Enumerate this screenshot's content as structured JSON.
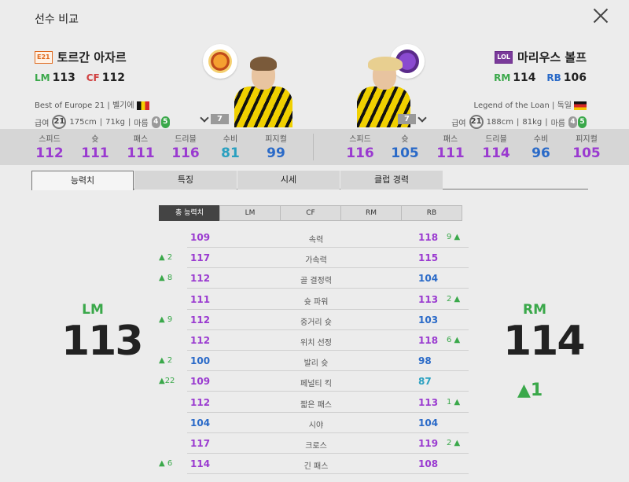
{
  "header": {
    "title": "선수 비교"
  },
  "left_player": {
    "season": "E21",
    "name": "토르간 아자르",
    "positions": [
      {
        "pos": "LM",
        "val": "113"
      },
      {
        "pos": "CF",
        "val": "112"
      }
    ],
    "season_full": "Best of Europe 21",
    "nation": "벨기에",
    "salary_label": "급여",
    "salary": "21",
    "height": "175cm",
    "weight": "71kg",
    "body": "마름",
    "foot_left": "4",
    "foot_right": "5",
    "level": "7"
  },
  "right_player": {
    "season": "LOL",
    "name": "마리우스 볼프",
    "positions": [
      {
        "pos": "RM",
        "val": "114"
      },
      {
        "pos": "RB",
        "val": "106"
      }
    ],
    "season_full": "Legend of the Loan",
    "nation": "독일",
    "salary_label": "급여",
    "salary": "21",
    "height": "188cm",
    "weight": "81kg",
    "body": "마름",
    "foot_left": "4",
    "foot_right": "5",
    "level": "7"
  },
  "stats_labels": [
    "스피드",
    "슛",
    "패스",
    "드리블",
    "수비",
    "피지컬"
  ],
  "left_stats": [
    "112",
    "111",
    "111",
    "116",
    "81",
    "99"
  ],
  "right_stats": [
    "116",
    "105",
    "111",
    "114",
    "96",
    "105"
  ],
  "tabs": [
    "능력치",
    "특징",
    "시세",
    "클럽 경력"
  ],
  "sub_tabs": [
    "총 능력치",
    "LM",
    "CF",
    "RM",
    "RB"
  ],
  "attributes": [
    {
      "name": "속력",
      "left": "109",
      "right": "118",
      "dl": "",
      "dr": "9 ▲"
    },
    {
      "name": "가속력",
      "left": "117",
      "right": "115",
      "dl": "▲ 2",
      "dr": ""
    },
    {
      "name": "골 결정력",
      "left": "112",
      "right": "104",
      "dl": "▲ 8",
      "dr": ""
    },
    {
      "name": "슛 파워",
      "left": "111",
      "right": "113",
      "dl": "",
      "dr": "2 ▲"
    },
    {
      "name": "중거리 슛",
      "left": "112",
      "right": "103",
      "dl": "▲ 9",
      "dr": ""
    },
    {
      "name": "위치 선정",
      "left": "112",
      "right": "118",
      "dl": "",
      "dr": "6 ▲"
    },
    {
      "name": "발리 슛",
      "left": "100",
      "right": "98",
      "dl": "▲ 2",
      "dr": ""
    },
    {
      "name": "페널티 킥",
      "left": "109",
      "right": "87",
      "dl": "▲22",
      "dr": ""
    },
    {
      "name": "짧은 패스",
      "left": "112",
      "right": "113",
      "dl": "",
      "dr": "1 ▲"
    },
    {
      "name": "시야",
      "left": "104",
      "right": "104",
      "dl": "",
      "dr": ""
    },
    {
      "name": "크로스",
      "left": "117",
      "right": "119",
      "dl": "",
      "dr": "2 ▲"
    },
    {
      "name": "긴 패스",
      "left": "114",
      "right": "108",
      "dl": "▲ 6",
      "dr": ""
    }
  ],
  "summary": {
    "left_pos": "LM",
    "left_val": "113",
    "right_pos": "RM",
    "right_val": "114",
    "right_delta": "▲1"
  },
  "colors": {
    "purple": "#9a3ad0",
    "blue": "#2a6ac8",
    "teal": "#2aa0c0",
    "green": "#3aa84a"
  }
}
